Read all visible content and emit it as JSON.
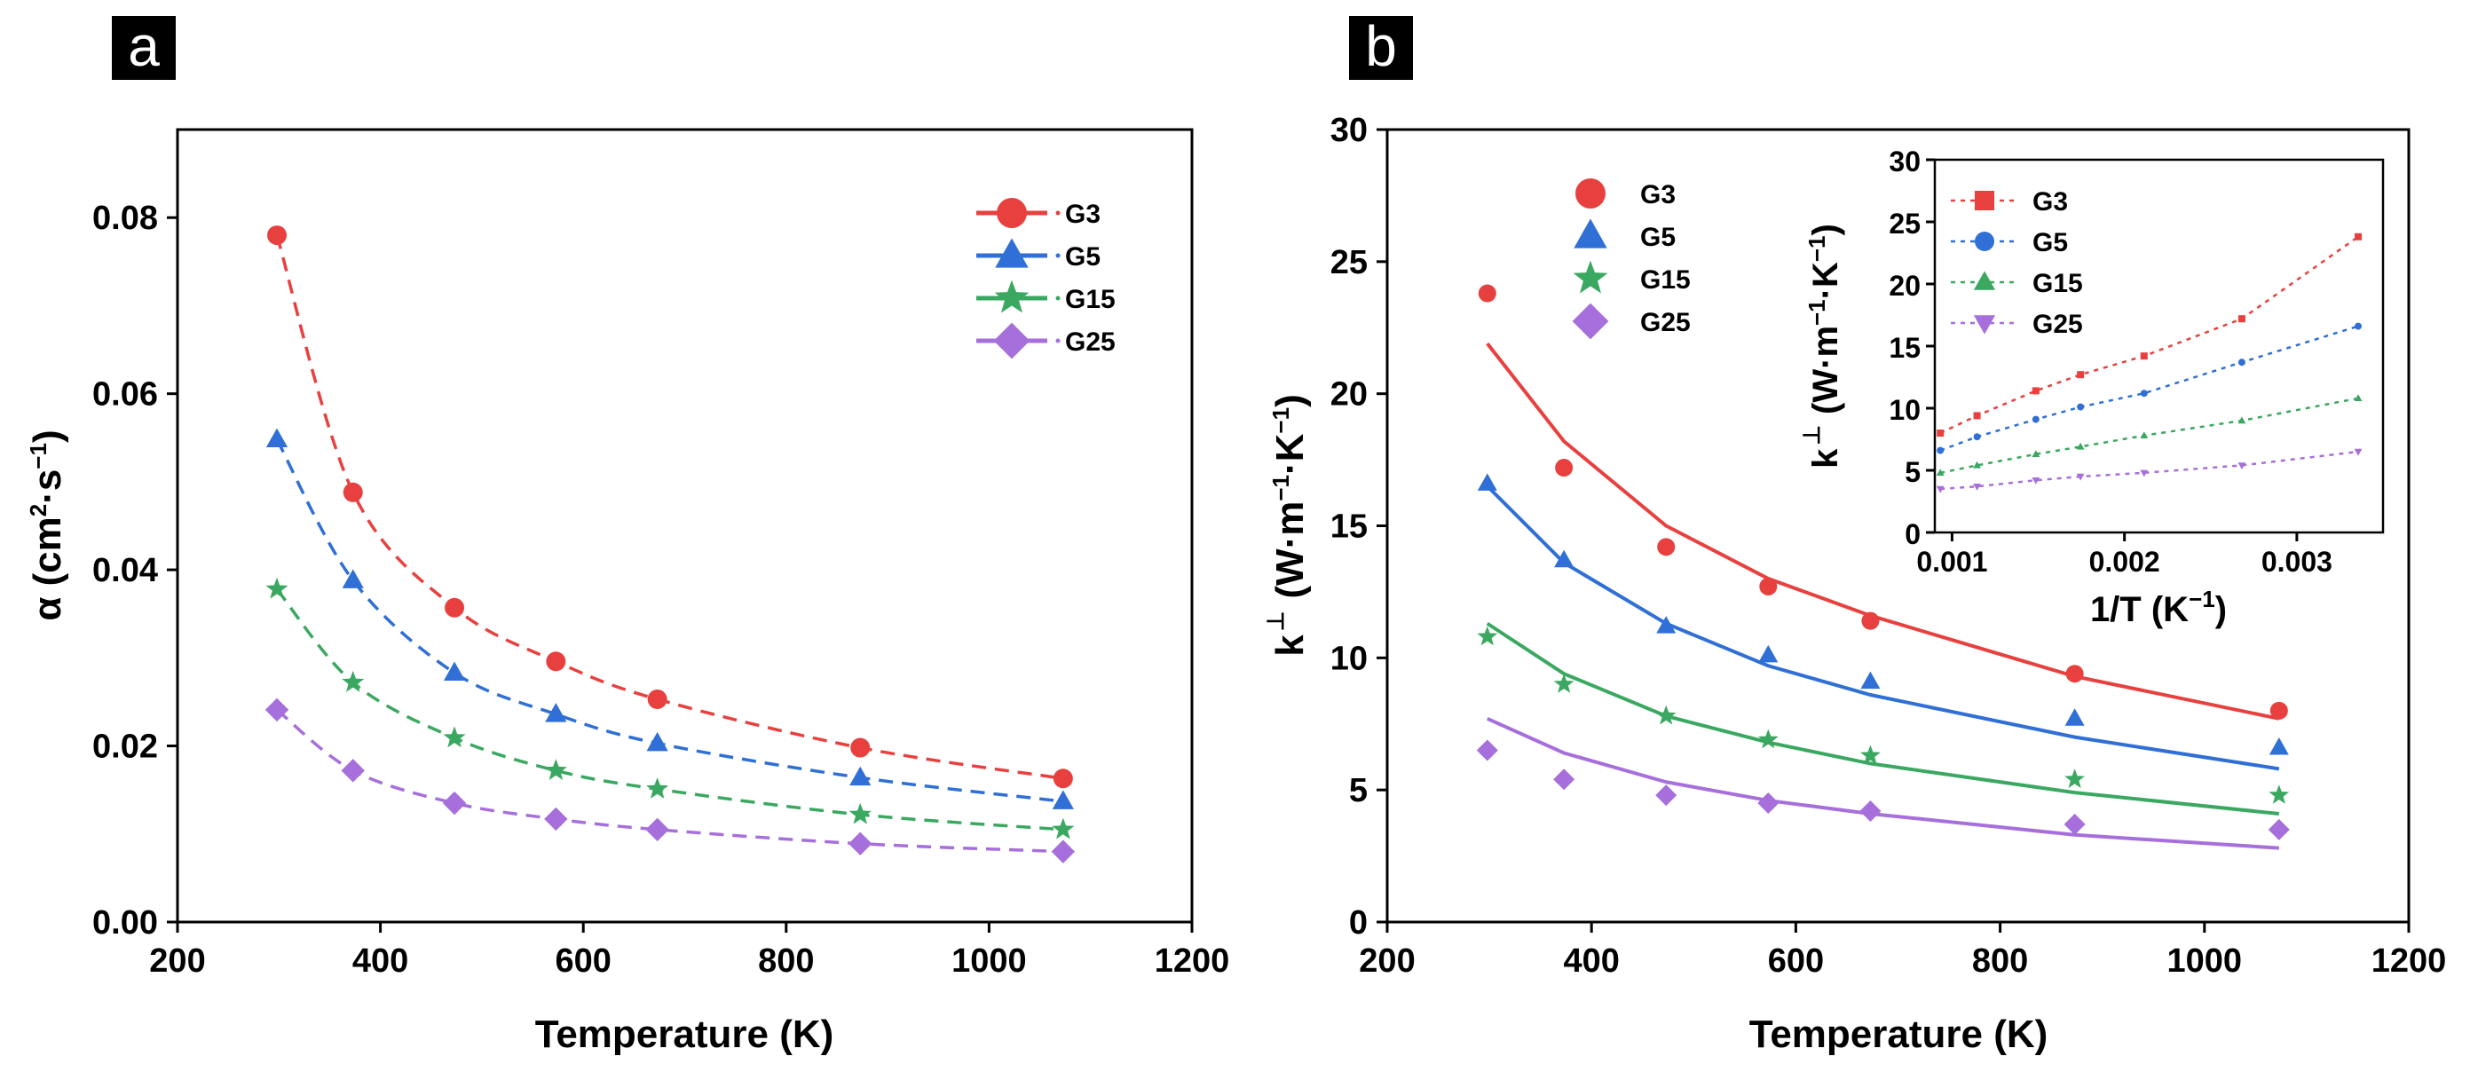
{
  "panels": {
    "a": {
      "tag": "a"
    },
    "b": {
      "tag": "b"
    }
  },
  "colors": {
    "G3": "#e8403e",
    "G5": "#2f6fd6",
    "G15": "#3aa860",
    "G25": "#a66fdb"
  },
  "chart_data": [
    {
      "type": "line",
      "panel": "a",
      "xlabel": "Temperature (K)",
      "ylabel_parts": {
        "symbol": "α",
        "open": "(cm",
        "sup1": "2",
        "mid": "·s",
        "sup2": "−1",
        "close": ")"
      },
      "xlim": [
        200,
        1200
      ],
      "ylim": [
        0,
        0.09
      ],
      "xticks": [
        200,
        400,
        600,
        800,
        1000,
        1200
      ],
      "yticks": [
        0.0,
        0.02,
        0.04,
        0.06,
        0.08
      ],
      "ytick_labels": [
        "0.00",
        "0.02",
        "0.04",
        "0.06",
        "0.08"
      ],
      "xtick_labels": [
        "200",
        "400",
        "600",
        "800",
        "1000",
        "1200"
      ],
      "line_style": "dashed",
      "x": [
        298,
        373,
        473,
        573,
        673,
        873,
        1073
      ],
      "legend_position": "top-right",
      "series": [
        {
          "name": "G3",
          "marker": "circle",
          "values": [
            0.078,
            0.0488,
            0.0357,
            0.0296,
            0.0253,
            0.0198,
            0.0163
          ]
        },
        {
          "name": "G5",
          "marker": "triangle",
          "values": [
            0.0548,
            0.0388,
            0.0283,
            0.0236,
            0.0203,
            0.0164,
            0.0137
          ]
        },
        {
          "name": "G15",
          "marker": "star",
          "values": [
            0.0378,
            0.0272,
            0.0209,
            0.0172,
            0.0151,
            0.0122,
            0.0105
          ]
        },
        {
          "name": "G25",
          "marker": "diamond",
          "values": [
            0.0241,
            0.0172,
            0.0135,
            0.0117,
            0.0105,
            0.0089,
            0.008
          ]
        }
      ]
    },
    {
      "type": "scatter",
      "panel": "b",
      "xlabel": "Temperature (K)",
      "ylabel_parts": {
        "symbol": "k",
        "perp": "⊥",
        "open": "(W·m",
        "sup1": "−1",
        "mid": "·K",
        "sup2": "−1",
        "close": ")"
      },
      "xlim": [
        200,
        1200
      ],
      "ylim": [
        0,
        30
      ],
      "xticks": [
        200,
        400,
        600,
        800,
        1000,
        1200
      ],
      "yticks": [
        0,
        5,
        10,
        15,
        20,
        25,
        30
      ],
      "ytick_labels": [
        "0",
        "5",
        "10",
        "15",
        "20",
        "25",
        "30"
      ],
      "xtick_labels": [
        "200",
        "400",
        "600",
        "800",
        "1000",
        "1200"
      ],
      "x": [
        298,
        373,
        473,
        573,
        673,
        873,
        1073
      ],
      "legend_position": "top-left",
      "series": [
        {
          "name": "G3",
          "marker": "circle",
          "values": [
            23.8,
            17.2,
            14.2,
            12.7,
            11.4,
            9.4,
            8.0
          ],
          "fit": [
            21.9,
            18.2,
            15.0,
            13.0,
            11.6,
            9.3,
            7.7
          ]
        },
        {
          "name": "G5",
          "marker": "triangle",
          "values": [
            16.6,
            13.7,
            11.2,
            10.1,
            9.1,
            7.7,
            6.6
          ],
          "fit": [
            16.5,
            13.6,
            11.3,
            9.7,
            8.6,
            7.0,
            5.8
          ]
        },
        {
          "name": "G15",
          "marker": "star",
          "values": [
            10.8,
            9.0,
            7.8,
            6.9,
            6.3,
            5.4,
            4.8
          ],
          "fit": [
            11.3,
            9.4,
            7.8,
            6.8,
            6.0,
            4.9,
            4.1
          ]
        },
        {
          "name": "G25",
          "marker": "diamond",
          "values": [
            6.5,
            5.4,
            4.8,
            4.5,
            4.2,
            3.7,
            3.5
          ],
          "fit": [
            7.7,
            6.4,
            5.3,
            4.6,
            4.1,
            3.3,
            2.8
          ]
        }
      ]
    },
    {
      "type": "line",
      "panel": "b-inset",
      "xlabel_parts": {
        "main": "1/T (K",
        "sup": "−1",
        "close": ")"
      },
      "ylabel_parts": {
        "symbol": "k",
        "perp": "⊥",
        "open": "(W·m",
        "sup1": "−1",
        "mid": "·K",
        "sup2": "−1",
        "close": ")"
      },
      "xlim": [
        0.0009,
        0.0035
      ],
      "ylim": [
        0,
        30
      ],
      "xticks": [
        0.001,
        0.002,
        0.003
      ],
      "xtick_labels": [
        "0.001",
        "0.002",
        "0.003"
      ],
      "yticks": [
        0,
        5,
        10,
        15,
        20,
        25,
        30
      ],
      "ytick_labels": [
        "0",
        "5",
        "10",
        "15",
        "20",
        "25",
        "30"
      ],
      "line_style": "dotted",
      "x": [
        0.000932,
        0.001145,
        0.001486,
        0.001745,
        0.002114,
        0.002681,
        0.003356
      ],
      "legend_position": "top-left",
      "series": [
        {
          "name": "G3",
          "marker": "square",
          "values": [
            8.0,
            9.4,
            11.4,
            12.7,
            14.2,
            17.2,
            23.8
          ]
        },
        {
          "name": "G5",
          "marker": "circle",
          "values": [
            6.6,
            7.7,
            9.1,
            10.1,
            11.2,
            13.7,
            16.6
          ]
        },
        {
          "name": "G15",
          "marker": "triangle",
          "values": [
            4.8,
            5.4,
            6.3,
            6.9,
            7.8,
            9.0,
            10.8
          ]
        },
        {
          "name": "G25",
          "marker": "triangle-down",
          "values": [
            3.5,
            3.7,
            4.2,
            4.5,
            4.8,
            5.4,
            6.5
          ]
        }
      ]
    }
  ]
}
